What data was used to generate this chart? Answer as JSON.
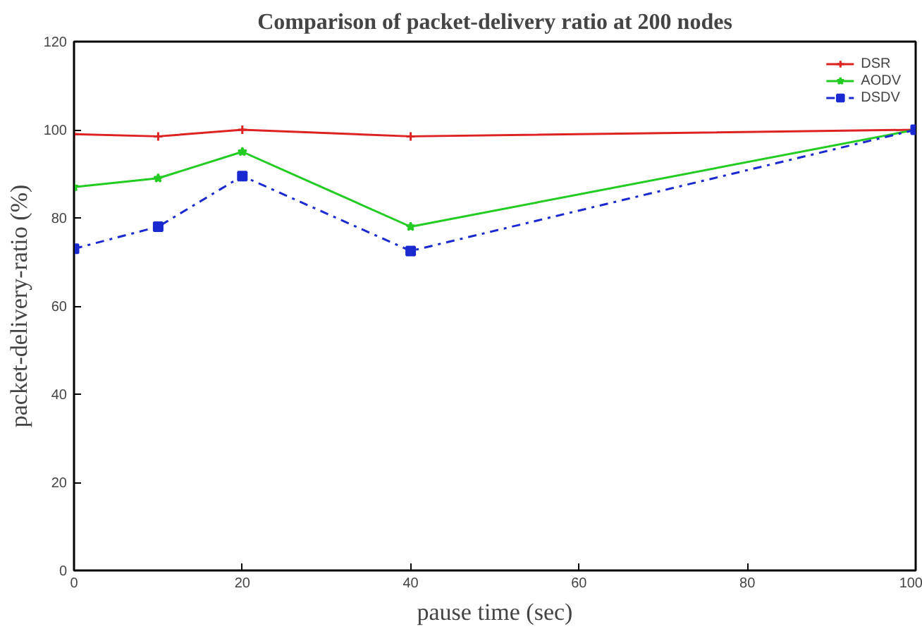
{
  "chart_data": {
    "type": "line",
    "title": "Comparison of packet-delivery ratio at 200 nodes",
    "xlabel": "pause time (sec)",
    "ylabel": "packet-delivery-ratio (%)",
    "x": [
      0,
      10,
      20,
      40,
      100
    ],
    "series": [
      {
        "name": "DSR",
        "color": "#dd2222",
        "values": [
          99,
          98.5,
          100,
          98.5,
          100
        ],
        "marker": "cross",
        "line_style": "solid"
      },
      {
        "name": "AODV",
        "color": "#22cc22",
        "values": [
          87,
          89,
          95,
          78,
          100
        ],
        "marker": "star",
        "line_style": "solid"
      },
      {
        "name": "DSDV",
        "color": "#1a2ad0",
        "values": [
          73,
          78,
          89.5,
          72.5,
          100
        ],
        "marker": "square",
        "line_style": "dashed"
      }
    ],
    "xlim": [
      0,
      100
    ],
    "ylim": [
      0,
      120
    ],
    "xticks": [
      0,
      20,
      40,
      60,
      80,
      100
    ],
    "yticks": [
      0,
      20,
      40,
      60,
      80,
      100,
      120
    ],
    "grid": false,
    "legend": "top right"
  }
}
